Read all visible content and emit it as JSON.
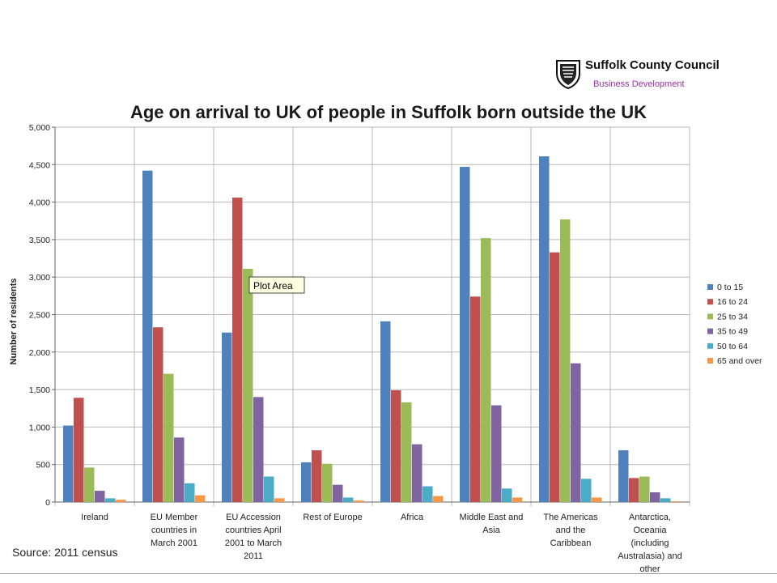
{
  "header": {
    "org_name": "Suffolk County Council",
    "org_unit": "Business Development",
    "brand_color": "#9b2fa8"
  },
  "source_note": "Source: 2011 census",
  "tooltip": {
    "label": "Plot Area"
  },
  "chart_data": {
    "type": "bar",
    "title": "Age on arrival to UK of people in Suffolk born outside the UK",
    "xlabel": "",
    "ylabel": "Number of residents",
    "ylim": [
      0,
      5000
    ],
    "yticks": [
      "0",
      "500",
      "1,000",
      "1,500",
      "2,000",
      "2,500",
      "3,000",
      "3,500",
      "4,000",
      "4,500",
      "5,000"
    ],
    "grid": true,
    "legend_position": "right",
    "categories": [
      [
        "Ireland"
      ],
      [
        "EU Member",
        "countries in",
        "March 2001"
      ],
      [
        "EU Accession",
        "countries April",
        "2001 to March",
        "2011"
      ],
      [
        "Rest of Europe"
      ],
      [
        "Africa"
      ],
      [
        "Middle East and",
        "Asia"
      ],
      [
        "The Americas",
        "and the",
        "Caribbean"
      ],
      [
        "Antarctica,",
        "Oceania",
        "(including",
        "Australasia) and",
        "other"
      ]
    ],
    "series": [
      {
        "name": "0 to 15",
        "color": "#4f81bd",
        "values": [
          1020,
          4420,
          2260,
          530,
          2410,
          4470,
          4610,
          690
        ]
      },
      {
        "name": "16 to 24",
        "color": "#c0504d",
        "values": [
          1390,
          2330,
          4060,
          690,
          1490,
          2740,
          3330,
          320
        ]
      },
      {
        "name": "25 to 34",
        "color": "#9bbb59",
        "values": [
          460,
          1710,
          3110,
          510,
          1330,
          3520,
          3770,
          340
        ]
      },
      {
        "name": "35 to 49",
        "color": "#8064a2",
        "values": [
          150,
          860,
          1400,
          230,
          770,
          1290,
          1850,
          130
        ]
      },
      {
        "name": "50 to 64",
        "color": "#4bacc6",
        "values": [
          50,
          250,
          340,
          60,
          210,
          180,
          310,
          50
        ]
      },
      {
        "name": "65 and over",
        "color": "#f79646",
        "values": [
          30,
          90,
          50,
          20,
          80,
          60,
          60,
          10
        ]
      }
    ]
  }
}
